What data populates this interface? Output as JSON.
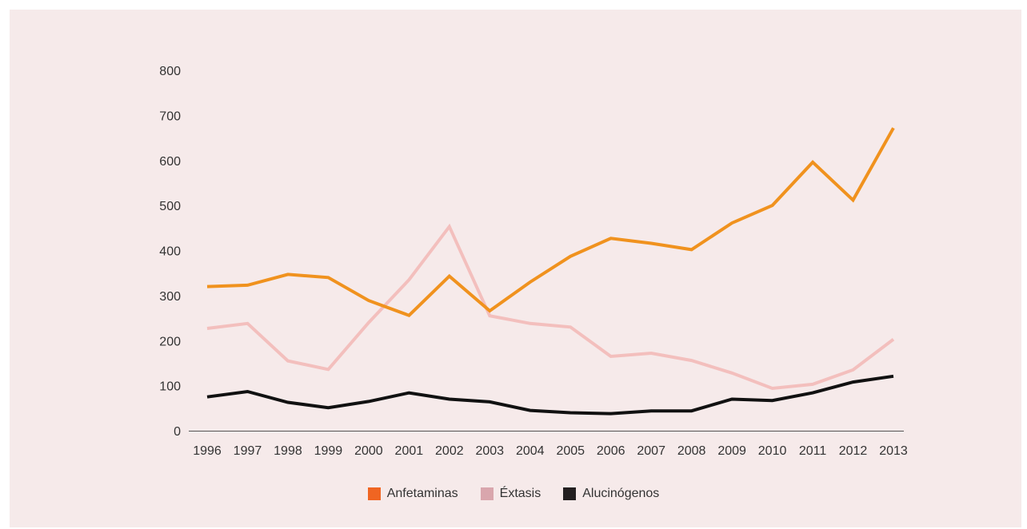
{
  "chart_data": {
    "type": "line",
    "title": "",
    "xlabel": "",
    "ylabel": "",
    "ylim": [
      0,
      800
    ],
    "yticks": [
      0,
      100,
      200,
      300,
      400,
      500,
      600,
      700,
      800
    ],
    "grid": false,
    "legend_position": "bottom-center",
    "categories": [
      "1996",
      "1997",
      "1998",
      "1999",
      "2000",
      "2001",
      "2002",
      "2003",
      "2004",
      "2005",
      "2006",
      "2007",
      "2008",
      "2009",
      "2010",
      "2011",
      "2012",
      "2013"
    ],
    "series": [
      {
        "name": "Anfetaminas",
        "line_color": "#f0921e",
        "legend_color": "#f06522",
        "values": [
          320,
          323,
          347,
          340,
          289,
          256,
          343,
          266,
          330,
          387,
          427,
          416,
          402,
          461,
          500,
          596,
          512,
          672
        ]
      },
      {
        "name": "Éxtasis",
        "line_color": "#f3bfbd",
        "legend_color": "#d9a6ad",
        "values": [
          227,
          238,
          155,
          136,
          240,
          335,
          453,
          255,
          238,
          230,
          165,
          172,
          156,
          128,
          94,
          103,
          135,
          203
        ]
      },
      {
        "name": "Alucinógenos",
        "line_color": "#111111",
        "legend_color": "#231f20",
        "values": [
          75,
          87,
          63,
          51,
          65,
          84,
          70,
          64,
          45,
          40,
          38,
          44,
          44,
          70,
          67,
          84,
          108,
          121
        ]
      }
    ]
  }
}
